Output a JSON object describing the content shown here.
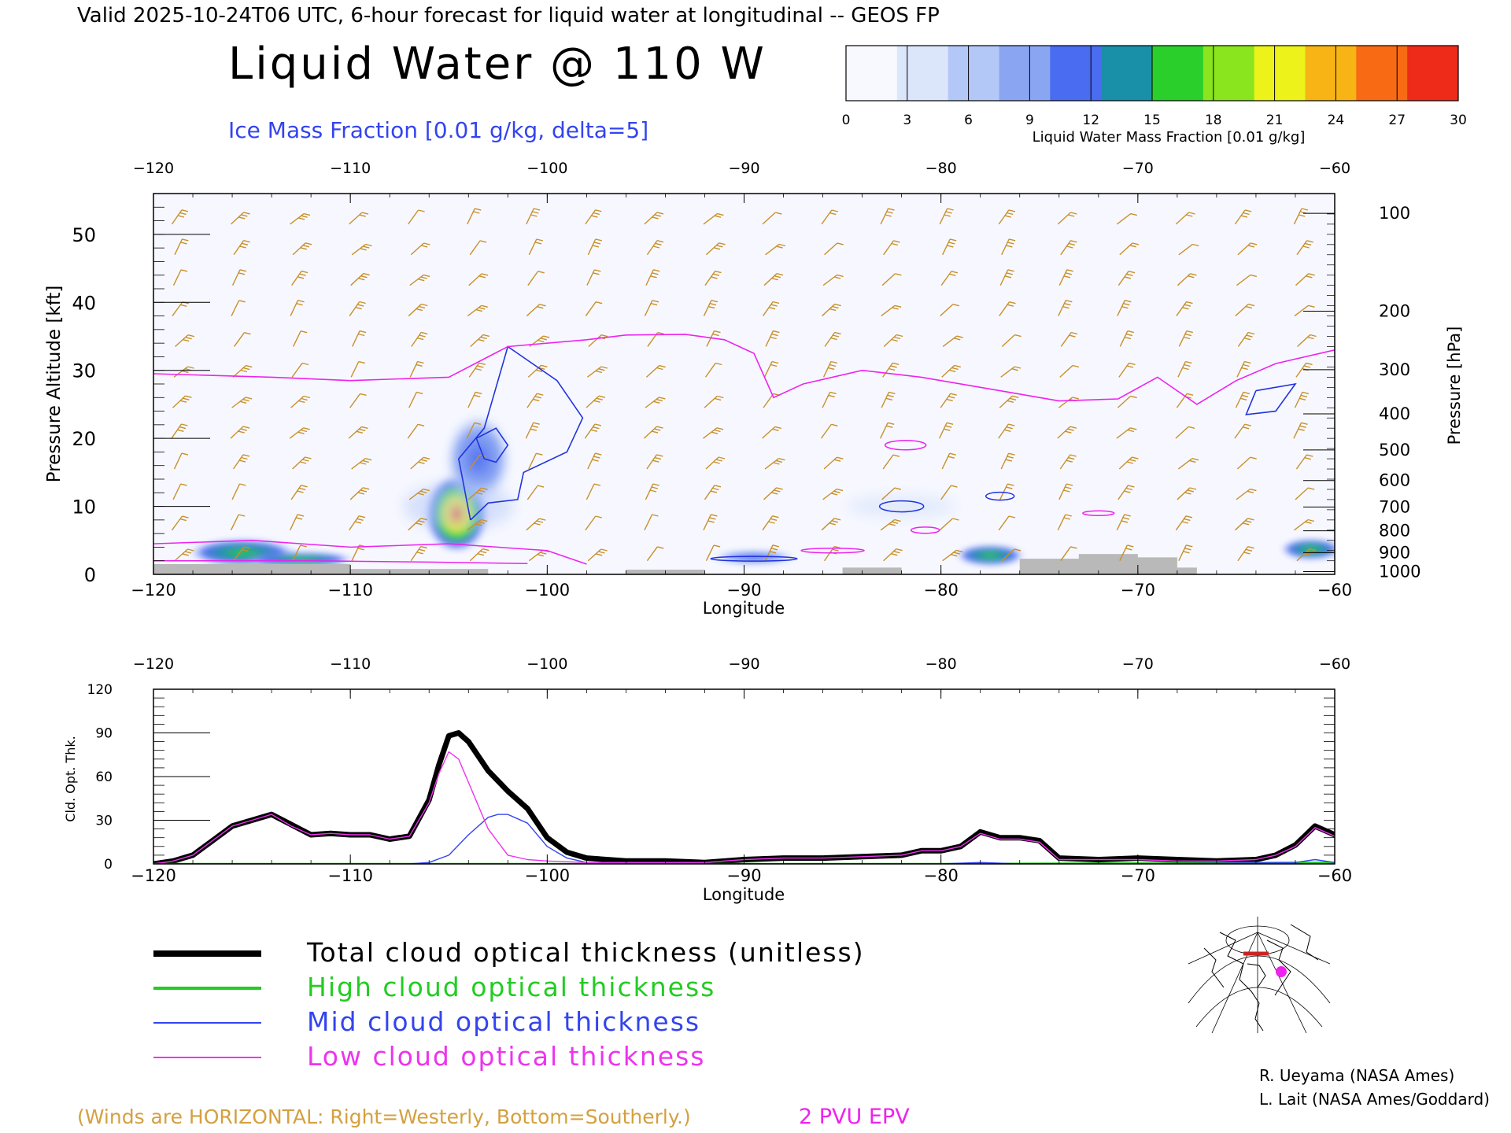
{
  "header": {
    "valid_line": "Valid 2025-10-24T06 UTC, 6-hour forecast for liquid water at longitudinal -- GEOS FP",
    "title": "Liquid Water @ 110 W",
    "subtitle": "Ice Mass Fraction [0.01 g/kg, delta=5]"
  },
  "colorbar": {
    "ticks": [
      "0",
      "3",
      "6",
      "9",
      "12",
      "15",
      "18",
      "21",
      "24",
      "27",
      "30"
    ],
    "label": "Liquid Water Mass Fraction [0.01 g/kg]",
    "colors": [
      "#f8f8ff",
      "#dce6fb",
      "#b4c8f8",
      "#8aa6f3",
      "#4a6cf0",
      "#1a8fa8",
      "#2bcf2b",
      "#8ae51e",
      "#ecf21a",
      "#f8b414",
      "#f86a14",
      "#ee2a18"
    ]
  },
  "footer": {
    "winds_note": "(Winds are HORIZONTAL: Right=Westerly, Bottom=Southerly.)",
    "epv_label": "2 PVU EPV",
    "credit_1": "R. Ueyama (NASA Ames)",
    "credit_2": "L. Lait (NASA Ames/Goddard)"
  },
  "legend": [
    {
      "label": "Total cloud optical thickness (unitless)",
      "color": "#000000"
    },
    {
      "label": "High cloud optical thickness",
      "color": "#22cc22"
    },
    {
      "label": "Mid cloud optical thickness",
      "color": "#3344ee"
    },
    {
      "label": "Low cloud optical thickness",
      "color": "#ee33ee"
    }
  ],
  "chart_data": [
    {
      "type": "heatmap",
      "xlabel": "Longitude",
      "ylabel": "Pressure Altitude [kft]",
      "y2label": "Pressure [hPa]",
      "xlim": [
        -120,
        -60
      ],
      "ylim": [
        0,
        56
      ],
      "x_ticks": [
        "-120",
        "-110",
        "-100",
        "-90",
        "-80",
        "-70",
        "-60"
      ],
      "y_ticks": [
        "0",
        "10",
        "20",
        "30",
        "40",
        "50"
      ],
      "pressure_ticks": [
        {
          "label": "100",
          "kft": 53.1
        },
        {
          "label": "200",
          "kft": 38.7
        },
        {
          "label": "300",
          "kft": 30.1
        },
        {
          "label": "400",
          "kft": 23.6
        },
        {
          "label": "500",
          "kft": 18.3
        },
        {
          "label": "600",
          "kft": 13.8
        },
        {
          "label": "700",
          "kft": 9.9
        },
        {
          "label": "800",
          "kft": 6.4
        },
        {
          "label": "900",
          "kft": 3.2
        },
        {
          "label": "1000",
          "kft": 0.4
        }
      ],
      "liquid_water_blobs": [
        {
          "lon": -104.6,
          "kft": 9.5,
          "max": 26
        },
        {
          "lon": -115.5,
          "kft": 3.2,
          "max": 14
        },
        {
          "lon": -112.5,
          "kft": 2.2,
          "max": 8
        },
        {
          "lon": -77.5,
          "kft": 2.8,
          "max": 12
        },
        {
          "lon": -61.2,
          "kft": 3.7,
          "max": 14
        },
        {
          "lon": -103.5,
          "kft": 17,
          "max": 6
        },
        {
          "lon": -89.5,
          "kft": 2.5,
          "max": 6
        }
      ],
      "epv_2pvu_kft": [
        [
          -120,
          29.5
        ],
        [
          -114,
          29
        ],
        [
          -110,
          28.5
        ],
        [
          -105,
          29
        ],
        [
          -102,
          33.5
        ],
        [
          -98,
          34.5
        ],
        [
          -96,
          35.2
        ],
        [
          -93,
          35.3
        ],
        [
          -91,
          34.5
        ],
        [
          -89.5,
          32.5
        ],
        [
          -88.5,
          26
        ],
        [
          -87,
          28
        ],
        [
          -84,
          30
        ],
        [
          -81,
          29
        ],
        [
          -77,
          27
        ],
        [
          -74,
          25.5
        ],
        [
          -71,
          25.8
        ],
        [
          -69,
          29
        ],
        [
          -67,
          25
        ],
        [
          -65,
          28.5
        ],
        [
          -63,
          31
        ],
        [
          -60,
          33
        ]
      ],
      "ice_contours_kft": [
        [
          [
            -103.9,
            8
          ],
          [
            -104.5,
            17
          ],
          [
            -103.2,
            21.5
          ],
          [
            -102,
            33.5
          ],
          [
            -99.5,
            28.5
          ],
          [
            -98.2,
            23
          ],
          [
            -99,
            18
          ],
          [
            -101.2,
            15
          ],
          [
            -101.5,
            11
          ],
          [
            -103,
            10.5
          ],
          [
            -103.9,
            8
          ]
        ],
        [
          [
            -103.2,
            17
          ],
          [
            -103.6,
            20
          ],
          [
            -102.6,
            21.5
          ],
          [
            -102,
            19
          ],
          [
            -102.6,
            16.5
          ],
          [
            -103.2,
            17
          ]
        ],
        [
          [
            -64,
            27
          ],
          [
            -62,
            28
          ],
          [
            -63,
            24
          ],
          [
            -64.5,
            23.5
          ],
          [
            -64,
            27
          ]
        ]
      ],
      "winds_note": "(Winds are HORIZONTAL: Right=Westerly, Bottom=Southerly.)"
    },
    {
      "type": "line",
      "xlabel": "Longitude",
      "ylabel": "Cld. Opt. Thk.",
      "xlim": [
        -120,
        -60
      ],
      "ylim": [
        0,
        120
      ],
      "x_ticks": [
        "-120",
        "-110",
        "-100",
        "-90",
        "-80",
        "-70",
        "-60"
      ],
      "y_ticks": [
        "0",
        "30",
        "60",
        "90",
        "120"
      ],
      "series": [
        {
          "name": "Total cloud optical thickness (unitless)",
          "color": "#000000",
          "x": [
            -120,
            -119,
            -118,
            -117,
            -116,
            -115,
            -114,
            -113,
            -112,
            -111,
            -110,
            -109,
            -108,
            -107,
            -106,
            -105.5,
            -105,
            -104.5,
            -104,
            -103,
            -102,
            -101,
            -100,
            -99,
            -98,
            -96,
            -94,
            -92,
            -90,
            -88,
            -86,
            -84,
            -82,
            -81,
            -80,
            -79,
            -78,
            -77,
            -76,
            -75,
            -74,
            -72,
            -70,
            -68,
            -66,
            -64,
            -63,
            -62,
            -61,
            -60
          ],
          "y": [
            0,
            2,
            6,
            16,
            26,
            30,
            34,
            27,
            20,
            21,
            20,
            20,
            17,
            19,
            44,
            68,
            88,
            90,
            84,
            64,
            50,
            38,
            18,
            8,
            4,
            2,
            2,
            1,
            3,
            4,
            4,
            5,
            6,
            9,
            9,
            12,
            22,
            18,
            18,
            16,
            4,
            3,
            4,
            3,
            2,
            3,
            6,
            13,
            26,
            20
          ]
        },
        {
          "name": "High cloud optical thickness",
          "color": "#22cc22",
          "x": [
            -120,
            -100,
            -80,
            -60
          ],
          "y": [
            0,
            0,
            0,
            1
          ]
        },
        {
          "name": "Mid cloud optical thickness",
          "color": "#3344ee",
          "x": [
            -120,
            -107,
            -106,
            -105,
            -104,
            -103,
            -102.5,
            -102,
            -101,
            -100,
            -99,
            -98,
            -90,
            -80,
            -78,
            -76,
            -70,
            -62,
            -61,
            -60
          ],
          "y": [
            0,
            0,
            1,
            6,
            20,
            32,
            34,
            34,
            28,
            12,
            4,
            1,
            0,
            0,
            1,
            0,
            0,
            1,
            3,
            1
          ]
        },
        {
          "name": "Low cloud optical thickness",
          "color": "#ee33ee",
          "x": [
            -120,
            -119,
            -118,
            -117,
            -116,
            -115,
            -114,
            -113,
            -112,
            -111,
            -110,
            -109,
            -108,
            -107,
            -106,
            -105.5,
            -105,
            -104.5,
            -104,
            -103.5,
            -103,
            -102,
            -101,
            -100,
            -98,
            -96,
            -94,
            -92,
            -90,
            -88,
            -86,
            -84,
            -82,
            -81,
            -80,
            -79,
            -78,
            -77,
            -76,
            -75,
            -74,
            -72,
            -70,
            -68,
            -66,
            -64,
            -63,
            -62,
            -61,
            -60
          ],
          "y": [
            0,
            2,
            6,
            16,
            26,
            30,
            34,
            26,
            20,
            21,
            20,
            20,
            17,
            19,
            42,
            62,
            77,
            72,
            56,
            40,
            24,
            6,
            3,
            2,
            1,
            1,
            1,
            1,
            3,
            4,
            4,
            5,
            6,
            9,
            9,
            12,
            21,
            17,
            17,
            15,
            3,
            3,
            3,
            2,
            2,
            3,
            6,
            12,
            25,
            19
          ]
        }
      ]
    }
  ]
}
